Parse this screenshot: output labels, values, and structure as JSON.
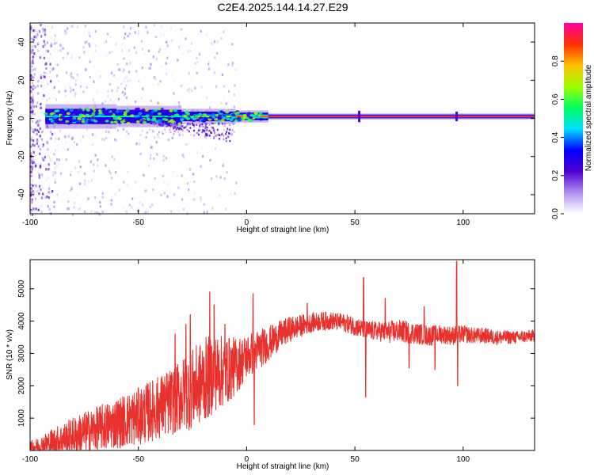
{
  "title": "C2E4.2025.144.14.27.E29",
  "colors": {
    "snr_line": "#e8302c",
    "signal_band": "#d03a3a",
    "axis": "#000000"
  },
  "chart_data": [
    {
      "type": "heatmap",
      "title": "C2E4.2025.144.14.27.E29",
      "xlabel": "Height of straight line (km)",
      "ylabel": "Frequency (Hz)",
      "xlim": [
        -100,
        133
      ],
      "ylim": [
        -50,
        50
      ],
      "x_ticks": [
        "-100",
        "-50",
        "0",
        "50",
        "100"
      ],
      "y_ticks": [
        "-40",
        "-20",
        "0",
        "20",
        "40"
      ],
      "grid": false,
      "colorbar": {
        "label": "Normalized spectral amplitude",
        "ticks": [
          "0.0",
          "0.2",
          "0.4",
          "0.6",
          "0.8"
        ],
        "range": [
          0,
          1
        ],
        "colormap": [
          "#ffffff",
          "#b090f0",
          "#5000d0",
          "#0000ff",
          "#00e0ff",
          "#00ff60",
          "#a0ff00",
          "#ffc000",
          "#ff3000",
          "#ff00a0"
        ]
      },
      "signal_ridge": {
        "center_frequency_hz": 1,
        "bands": [
          {
            "x_from": -93,
            "x_to": -60,
            "half_width_hz": 4,
            "amplitude": 0.5
          },
          {
            "x_from": -60,
            "x_to": -30,
            "half_width_hz": 3.5,
            "amplitude": 0.55
          },
          {
            "x_from": -30,
            "x_to": -5,
            "half_width_hz": 2.5,
            "amplitude": 0.7
          },
          {
            "x_from": -5,
            "x_to": 10,
            "half_width_hz": 2,
            "amplitude": 0.9
          },
          {
            "x_from": 10,
            "x_to": 133,
            "half_width_hz": 1,
            "amplitude": 1.0
          }
        ]
      }
    },
    {
      "type": "line",
      "xlabel": "Height of straight line (km)",
      "ylabel": "SNR (10 * v/v)",
      "xlim": [
        -100,
        133
      ],
      "ylim": [
        0,
        5900
      ],
      "x_ticks": [
        "-100",
        "-50",
        "0",
        "50",
        "100"
      ],
      "y_ticks": [
        "1000",
        "2000",
        "3000",
        "4000",
        "5000"
      ],
      "grid": false,
      "series": [
        {
          "envelope": {
            "x": [
              -100,
              -95,
              -90,
              -85,
              -80,
              -75,
              -70,
              -65,
              -60,
              -55,
              -50,
              -45,
              -40,
              -35,
              -30,
              -25,
              -20,
              -17,
              -15,
              -10,
              -5,
              0,
              5,
              10,
              15,
              20,
              25,
              30,
              35,
              40,
              45,
              50,
              55,
              60,
              65,
              70,
              75,
              80,
              85,
              90,
              95,
              100,
              105,
              110,
              115,
              120,
              125,
              133
            ],
            "mean": [
              100,
              150,
              250,
              350,
              450,
              550,
              650,
              750,
              850,
              950,
              1050,
              1200,
              1350,
              1500,
              1700,
              1900,
              2150,
              2300,
              2400,
              2450,
              2600,
              2900,
              3100,
              3300,
              3550,
              3750,
              3850,
              3950,
              4000,
              4000,
              3950,
              3850,
              3700,
              3700,
              3650,
              3700,
              3650,
              3600,
              3550,
              3600,
              3550,
              3600,
              3550,
              3550,
              3500,
              3500,
              3500,
              3550
            ],
            "spread": [
              200,
              300,
              450,
              500,
              600,
              650,
              700,
              750,
              800,
              850,
              900,
              950,
              1000,
              1050,
              1150,
              1250,
              1300,
              1300,
              1200,
              1100,
              900,
              700,
              650,
              550,
              450,
              400,
              350,
              300,
              300,
              280,
              280,
              300,
              320,
              300,
              350,
              350,
              350,
              330,
              320,
              300,
              300,
              280,
              250,
              250,
              230,
              220,
              200,
              200
            ]
          },
          "spikes": [
            {
              "x": -33,
              "value": 3600
            },
            {
              "x": -28,
              "value": 3900
            },
            {
              "x": -26,
              "value": 4200
            },
            {
              "x": -17,
              "value": 4900
            },
            {
              "x": -15,
              "value": 4500
            },
            {
              "x": -10,
              "value": 3900
            },
            {
              "x": 3,
              "value": 4850
            },
            {
              "x": 3.5,
              "value": 800
            },
            {
              "x": 28,
              "value": 4550
            },
            {
              "x": 54,
              "value": 5350
            },
            {
              "x": 55,
              "value": 1650
            },
            {
              "x": 64,
              "value": 4700
            },
            {
              "x": 75,
              "value": 2550
            },
            {
              "x": 82,
              "value": 4450
            },
            {
              "x": 87,
              "value": 2500
            },
            {
              "x": 97,
              "value": 5850
            },
            {
              "x": 97.5,
              "value": 2000
            }
          ]
        }
      ]
    }
  ]
}
